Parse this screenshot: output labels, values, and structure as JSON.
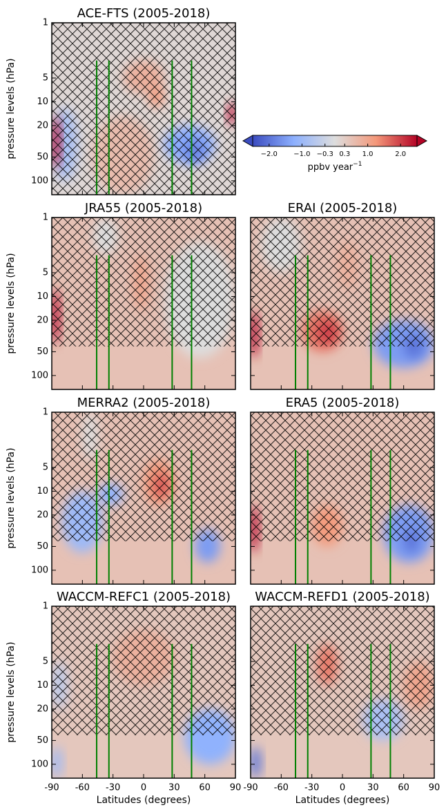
{
  "chart_data": [
    {
      "type": "contour",
      "title": "ACE-FTS (2005-2018)",
      "ylabel": "pressure levels (hPa)",
      "xlim": [
        -90,
        90
      ],
      "xticks": [
        -90,
        -60,
        -30,
        0,
        30,
        60,
        90
      ],
      "ylim": [
        1,
        150
      ],
      "yticks": [
        1,
        5,
        10,
        20,
        50,
        100
      ],
      "background": 0.1,
      "reference_lats": [
        -46,
        -34,
        28,
        47
      ],
      "reference_top": 3,
      "reference_color": "#008000",
      "blobs": [
        {
          "lat": [
            -50,
            10
          ],
          "p": [
            15,
            150
          ],
          "value": 0.6
        },
        {
          "lat": [
            -90,
            -65
          ],
          "p": [
            12,
            100
          ],
          "value": -0.8
        },
        {
          "lat": [
            -90,
            -82
          ],
          "p": [
            15,
            70
          ],
          "value": 2.5
        },
        {
          "lat": [
            -20,
            20
          ],
          "p": [
            3,
            8
          ],
          "value": 0.8
        },
        {
          "lat": [
            5,
            20
          ],
          "p": [
            6,
            12
          ],
          "value": 1.2
        },
        {
          "lat": [
            20,
            70
          ],
          "p": [
            20,
            60
          ],
          "value": -1.3
        },
        {
          "lat": [
            40,
            60
          ],
          "p": [
            30,
            60
          ],
          "value": -1.8
        },
        {
          "lat": [
            83,
            90
          ],
          "p": [
            10,
            20
          ],
          "value": 2.5
        }
      ]
    },
    {
      "type": "contour",
      "title": "JRA55 (2005-2018)",
      "ylabel": "pressure levels (hPa)",
      "xlim": [
        -90,
        90
      ],
      "xticks": [
        -90,
        -60,
        -30,
        0,
        30,
        60,
        90
      ],
      "ylim": [
        1,
        150
      ],
      "yticks": [
        1,
        5,
        10,
        20,
        50,
        100
      ],
      "background": 0.5,
      "reference_lats": [
        -46,
        -34,
        28,
        47
      ],
      "reference_top": 3,
      "reference_color": "#008000",
      "blobs": [
        {
          "lat": [
            20,
            90
          ],
          "p": [
            2,
            60
          ],
          "value": 0.0
        },
        {
          "lat": [
            -50,
            -25
          ],
          "p": [
            1,
            3
          ],
          "value": 0.0
        },
        {
          "lat": [
            -90,
            -83
          ],
          "p": [
            8,
            40
          ],
          "value": 2.5
        },
        {
          "lat": [
            -10,
            5
          ],
          "p": [
            3,
            15
          ],
          "value": 1.0
        }
      ]
    },
    {
      "type": "contour",
      "title": "ERAI (2005-2018)",
      "xlim": [
        -90,
        90
      ],
      "xticks": [
        -90,
        -60,
        -30,
        0,
        30,
        60,
        90
      ],
      "ylim": [
        1,
        150
      ],
      "yticks": [
        1,
        5,
        10,
        20,
        50,
        100
      ],
      "background": 0.5,
      "reference_lats": [
        -46,
        -34,
        28,
        47
      ],
      "reference_top": 3,
      "reference_color": "#008000",
      "blobs": [
        {
          "lat": [
            -80,
            -40
          ],
          "p": [
            1,
            5
          ],
          "value": 0.0
        },
        {
          "lat": [
            -5,
            15
          ],
          "p": [
            2,
            8
          ],
          "value": 0.8
        },
        {
          "lat": [
            -40,
            0
          ],
          "p": [
            15,
            50
          ],
          "value": 1.5
        },
        {
          "lat": [
            -25,
            -5
          ],
          "p": [
            20,
            40
          ],
          "value": 2.0
        },
        {
          "lat": [
            30,
            90
          ],
          "p": [
            20,
            80
          ],
          "value": -1.5
        },
        {
          "lat": [
            60,
            80
          ],
          "p": [
            30,
            60
          ],
          "value": -2.0
        },
        {
          "lat": [
            -90,
            -83
          ],
          "p": [
            15,
            60
          ],
          "value": 2.5
        }
      ]
    },
    {
      "type": "contour",
      "title": "MERRA2 (2005-2018)",
      "ylabel": "pressure levels (hPa)",
      "xlim": [
        -90,
        90
      ],
      "xticks": [
        -90,
        -60,
        -30,
        0,
        30,
        60,
        90
      ],
      "ylim": [
        1,
        150
      ],
      "yticks": [
        1,
        5,
        10,
        20,
        50,
        100
      ],
      "background": 0.5,
      "reference_lats": [
        -46,
        -34,
        28,
        47
      ],
      "reference_top": 3,
      "reference_color": "#008000",
      "blobs": [
        {
          "lat": [
            -60,
            -45
          ],
          "p": [
            1,
            4
          ],
          "value": 0.0
        },
        {
          "lat": [
            -80,
            -40
          ],
          "p": [
            10,
            60
          ],
          "value": -1.0
        },
        {
          "lat": [
            -45,
            -20
          ],
          "p": [
            8,
            15
          ],
          "value": -1.2
        },
        {
          "lat": [
            0,
            30
          ],
          "p": [
            4,
            15
          ],
          "value": 1.2
        },
        {
          "lat": [
            10,
            25
          ],
          "p": [
            6,
            12
          ],
          "value": 1.8
        },
        {
          "lat": [
            50,
            75
          ],
          "p": [
            30,
            80
          ],
          "value": -1.5
        }
      ]
    },
    {
      "type": "contour",
      "title": "ERA5 (2005-2018)",
      "xlim": [
        -90,
        90
      ],
      "xticks": [
        -90,
        -60,
        -30,
        0,
        30,
        60,
        90
      ],
      "ylim": [
        1,
        150
      ],
      "yticks": [
        1,
        5,
        10,
        20,
        50,
        100
      ],
      "background": 0.5,
      "reference_lats": [
        -46,
        -34,
        28,
        47
      ],
      "reference_top": 3,
      "reference_color": "#008000",
      "blobs": [
        {
          "lat": [
            -30,
            0
          ],
          "p": [
            15,
            50
          ],
          "value": 1.2
        },
        {
          "lat": [
            40,
            90
          ],
          "p": [
            15,
            80
          ],
          "value": -1.5
        },
        {
          "lat": [
            60,
            75
          ],
          "p": [
            30,
            60
          ],
          "value": -2.0
        },
        {
          "lat": [
            -90,
            -83
          ],
          "p": [
            15,
            60
          ],
          "value": 2.5
        }
      ]
    },
    {
      "type": "contour",
      "title": "WACCM-REFC1 (2005-2018)",
      "ylabel": "pressure levels (hPa)",
      "xlabel": "Latitudes (degrees)",
      "xlim": [
        -90,
        90
      ],
      "xticks": [
        -90,
        -60,
        -30,
        0,
        30,
        60,
        90
      ],
      "ylim": [
        1,
        150
      ],
      "yticks": [
        1,
        5,
        10,
        20,
        50,
        100
      ],
      "background": 0.4,
      "reference_lats": [
        -46,
        -34,
        28,
        47
      ],
      "reference_top": 3,
      "reference_color": "#008000",
      "blobs": [
        {
          "lat": [
            -90,
            -75
          ],
          "p": [
            5,
            20
          ],
          "value": -0.5
        },
        {
          "lat": [
            -30,
            30
          ],
          "p": [
            2,
            10
          ],
          "value": 0.8
        },
        {
          "lat": [
            40,
            90
          ],
          "p": [
            20,
            100
          ],
          "value": -1.2
        },
        {
          "lat": [
            -90,
            -80
          ],
          "p": [
            60,
            150
          ],
          "value": -1.0
        }
      ]
    },
    {
      "type": "contour",
      "title": "WACCM-REFD1 (2005-2018)",
      "xlabel": "Latitudes (degrees)",
      "xlim": [
        -90,
        90
      ],
      "xticks": [
        -90,
        -60,
        -30,
        0,
        30,
        60,
        90
      ],
      "ylim": [
        1,
        150
      ],
      "yticks": [
        1,
        5,
        10,
        20,
        50,
        100
      ],
      "background": 0.4,
      "reference_lats": [
        -46,
        -34,
        28,
        47
      ],
      "reference_top": 3,
      "reference_color": "#008000",
      "blobs": [
        {
          "lat": [
            -25,
            -5
          ],
          "p": [
            3,
            10
          ],
          "value": 1.5
        },
        {
          "lat": [
            20,
            60
          ],
          "p": [
            15,
            50
          ],
          "value": -0.8
        },
        {
          "lat": [
            60,
            90
          ],
          "p": [
            5,
            20
          ],
          "value": 1.0
        },
        {
          "lat": [
            -90,
            -80
          ],
          "p": [
            60,
            150
          ],
          "value": -2.0
        }
      ]
    }
  ],
  "colorbar": {
    "label": "ppbv year",
    "label_exponent": "−1",
    "clim": [
      -2.5,
      2.5
    ],
    "colors": [
      {
        "value": -2.5,
        "color": "#3b4cc0"
      },
      {
        "value": -1.25,
        "color": "#8db0fe"
      },
      {
        "value": 0,
        "color": "#dddddd"
      },
      {
        "value": 1.25,
        "color": "#f4987a"
      },
      {
        "value": 2.5,
        "color": "#b40426"
      }
    ],
    "ticks": [
      {
        "value": -2.0,
        "label": "−2.0"
      },
      {
        "value": -1.0,
        "label": "−1.0"
      },
      {
        "value": -0.3,
        "label": "−0.3"
      },
      {
        "value": 0.3,
        "label": "0.3"
      },
      {
        "value": 1.0,
        "label": "1.0"
      },
      {
        "value": 2.0,
        "label": "2.0"
      }
    ]
  }
}
